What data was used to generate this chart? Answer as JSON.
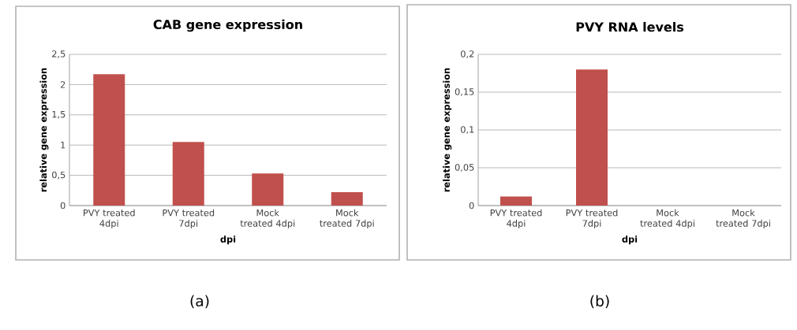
{
  "chart_data": [
    {
      "type": "bar",
      "title": "CAB gene expression",
      "xlabel": "dpi",
      "ylabel": "relative gene expression",
      "categories": [
        "PVY treated 4dpi",
        "PVY treated 7dpi",
        "Mock treated 4dpi",
        "Mock treated 7dpi"
      ],
      "values": [
        2.17,
        1.05,
        0.53,
        0.22
      ],
      "color": "#c0504d",
      "ylim": [
        0,
        2.5
      ],
      "yticks": [
        0,
        {
          "value": 0.5,
          "label": "0,5"
        },
        1,
        {
          "value": 1.5,
          "label": "1,5"
        },
        2,
        {
          "value": 2.5,
          "label": "2,5"
        }
      ],
      "grid": "y",
      "annotations": [
        "(a)"
      ]
    },
    {
      "type": "bar",
      "title": "PVY RNA levels",
      "xlabel": "dpi",
      "ylabel": "relative gene expression",
      "categories": [
        "PVY treated 4dpi",
        "PVY treated 7dpi",
        "Mock treated 4dpi",
        "Mock treated 7dpi"
      ],
      "values": [
        0.012,
        0.18,
        0,
        0
      ],
      "color": "#c0504d",
      "ylim": [
        0,
        0.2
      ],
      "yticks": [
        0,
        {
          "value": 0.05,
          "label": "0,05"
        },
        {
          "value": 0.1,
          "label": "0,1"
        },
        {
          "value": 0.15,
          "label": "0,15"
        },
        {
          "value": 0.2,
          "label": "0,2"
        }
      ],
      "grid": "y",
      "annotations": [
        "(b)"
      ]
    }
  ]
}
